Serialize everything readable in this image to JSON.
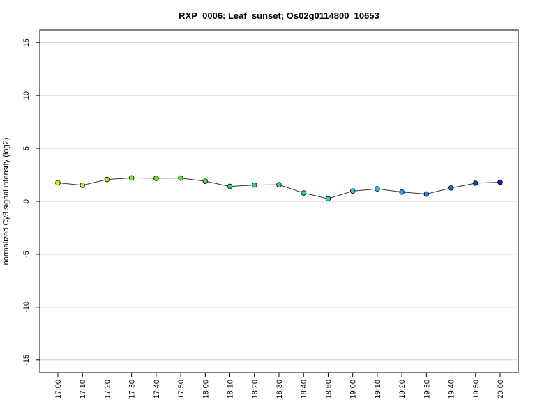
{
  "chart_data": {
    "type": "line",
    "title": "RXP_0006: Leaf_sunset; Os02g0114800_10653",
    "xlabel": "",
    "ylabel": "normalized Cy3 signal intensity (log2)",
    "ylim": [
      -16.2,
      16.2
    ],
    "yticks": [
      -15,
      -10,
      -5,
      0,
      5,
      10,
      15
    ],
    "ytick_labels": [
      "-15",
      "-10",
      "-5",
      "0",
      "5",
      "10",
      "15"
    ],
    "grid": "horizontal",
    "categories": [
      "17:00",
      "17:10",
      "17:20",
      "17:30",
      "17:40",
      "17:50",
      "18:00",
      "18:10",
      "18:20",
      "18:30",
      "18:40",
      "18:50",
      "19:00",
      "19:10",
      "19:20",
      "19:30",
      "19:40",
      "19:50",
      "20:00"
    ],
    "values": [
      1.75,
      1.52,
      2.07,
      2.21,
      2.18,
      2.2,
      1.9,
      1.41,
      1.54,
      1.57,
      0.79,
      0.25,
      0.97,
      1.18,
      0.87,
      0.69,
      1.26,
      1.72,
      1.81
    ],
    "point_colors": [
      "#e5e51a",
      "#cdea1a",
      "#a8e61e",
      "#8ae228",
      "#6edf2d",
      "#52dc32",
      "#3ddb48",
      "#33d65e",
      "#2fd37a",
      "#2bd298",
      "#2fd0b5",
      "#2ccccc",
      "#2bc5dc",
      "#2bb5e6",
      "#2a9de3",
      "#2a82dc",
      "#2563cf",
      "#1a45b8",
      "#0f27a8"
    ],
    "line_color": "#333333"
  }
}
